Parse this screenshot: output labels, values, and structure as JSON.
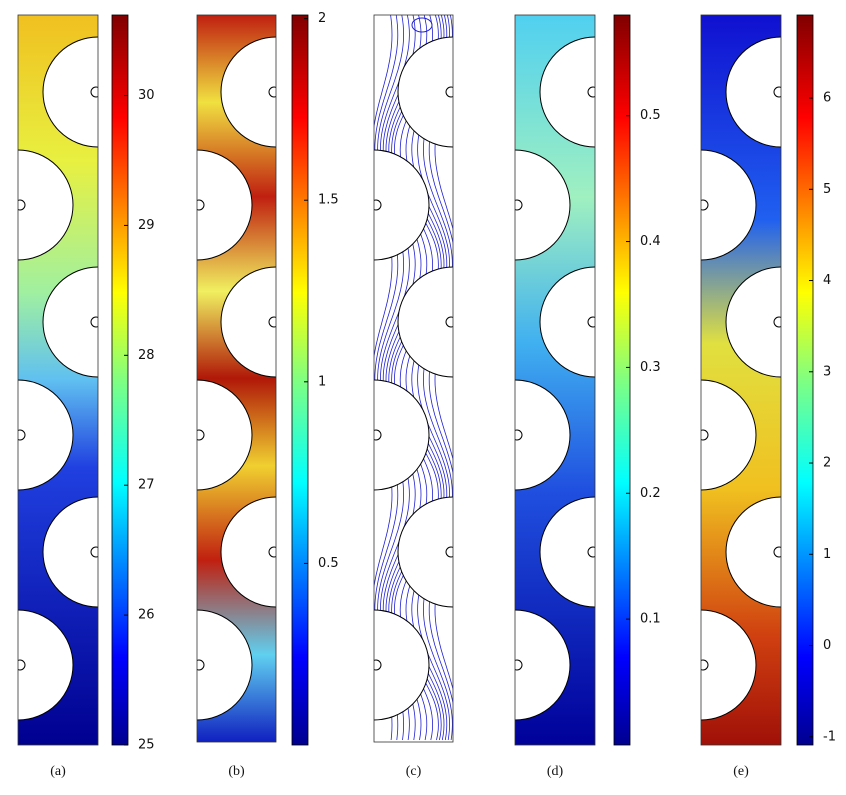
{
  "panels": [
    {
      "label": "(a)",
      "colorbar": {
        "lim": [
          25,
          30.62
        ],
        "ticks": [
          25,
          26,
          27,
          28,
          29,
          30
        ]
      }
    },
    {
      "label": "(b)",
      "colorbar": {
        "lim": [
          0,
          2.01
        ],
        "ticks": [
          0.5,
          1,
          1.5,
          2
        ]
      }
    },
    {
      "label": "(c)"
    },
    {
      "label": "(d)",
      "colorbar": {
        "lim": [
          0,
          0.58
        ],
        "ticks": [
          0.1,
          0.2,
          0.3,
          0.4,
          0.5
        ]
      }
    },
    {
      "label": "(e)",
      "colorbar": {
        "lim": [
          -1.09,
          6.91
        ],
        "ticks": [
          -1,
          0,
          1,
          2,
          3,
          4,
          5,
          6
        ]
      }
    }
  ]
}
